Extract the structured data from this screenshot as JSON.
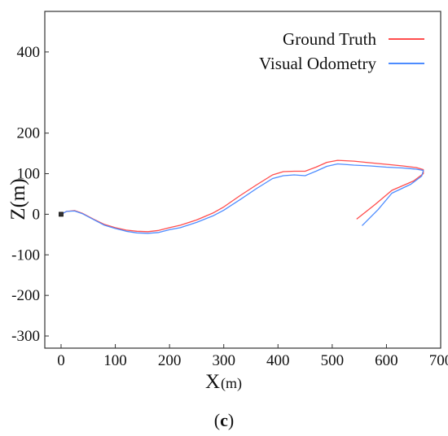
{
  "chart_data": {
    "type": "line",
    "title": "",
    "xlabel": "X",
    "xlabel_unit": "(m)",
    "ylabel": "Z(m)",
    "xlim": [
      -30,
      700
    ],
    "ylim": [
      -330,
      500
    ],
    "xticks": [
      0,
      100,
      200,
      300,
      400,
      500,
      600,
      700
    ],
    "yticks": [
      -300,
      -200,
      -100,
      0,
      100,
      200,
      400
    ],
    "grid": false,
    "legend_position": "top-right",
    "start_point": [
      0,
      0
    ],
    "series": [
      {
        "name": "Ground Truth",
        "color": "#ff4d4d",
        "x": [
          0,
          10,
          25,
          40,
          60,
          80,
          100,
          120,
          140,
          160,
          180,
          200,
          220,
          250,
          280,
          300,
          330,
          360,
          390,
          410,
          430,
          450,
          470,
          490,
          510,
          540,
          570,
          600,
          630,
          655,
          668,
          668,
          650,
          610,
          580,
          545
        ],
        "y": [
          0,
          7,
          9,
          2,
          -12,
          -25,
          -33,
          -39,
          -42,
          -43,
          -40,
          -33,
          -27,
          -14,
          3,
          18,
          46,
          72,
          97,
          105,
          106,
          106,
          116,
          128,
          133,
          131,
          127,
          123,
          119,
          115,
          110,
          100,
          82,
          59,
          25,
          -12
        ]
      },
      {
        "name": "Visual Odometry",
        "color": "#4d8cff",
        "x": [
          0,
          10,
          25,
          40,
          60,
          80,
          100,
          120,
          140,
          160,
          180,
          200,
          220,
          250,
          280,
          300,
          330,
          360,
          390,
          410,
          430,
          450,
          470,
          490,
          510,
          540,
          570,
          600,
          630,
          655,
          668,
          665,
          645,
          610,
          585,
          555
        ],
        "y": [
          0,
          7,
          8,
          1,
          -13,
          -27,
          -35,
          -42,
          -46,
          -47,
          -45,
          -38,
          -33,
          -20,
          -4,
          10,
          36,
          63,
          88,
          95,
          97,
          95,
          106,
          118,
          124,
          121,
          119,
          116,
          114,
          111,
          108,
          94,
          74,
          52,
          12,
          -28
        ]
      }
    ]
  },
  "caption": {
    "open": "(",
    "letter": "c",
    "close": ")"
  }
}
